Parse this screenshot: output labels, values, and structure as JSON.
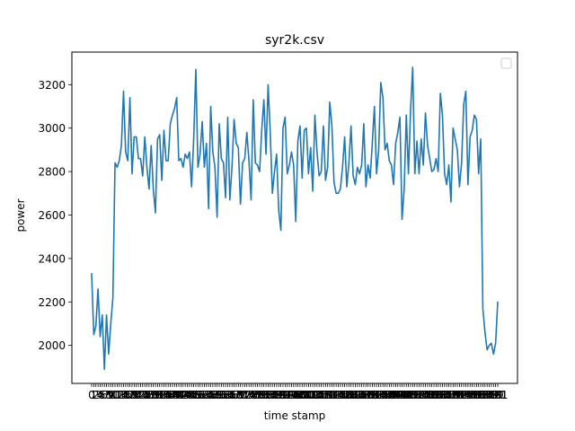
{
  "chart_data": {
    "type": "line",
    "title": "syr2k.csv",
    "xlabel": "time stamp",
    "ylabel": "power",
    "ylim": [
      1825,
      3350
    ],
    "yticks": [
      2000,
      2200,
      2400,
      2600,
      2800,
      3000,
      3200
    ],
    "grid": false,
    "legend": {
      "placement": "top-right",
      "entries": []
    },
    "line_color": "#1f77b4",
    "series": [
      {
        "values": [
          2330,
          2050,
          2090,
          2260,
          2040,
          2140,
          1890,
          2140,
          1960,
          2100,
          2220,
          2840,
          2820,
          2850,
          2920,
          3170,
          2890,
          2850,
          3140,
          2790,
          2960,
          2960,
          2860,
          2860,
          2780,
          2960,
          2820,
          2720,
          2920,
          2720,
          2610,
          2950,
          2970,
          2760,
          2990,
          2850,
          2850,
          3020,
          3060,
          3090,
          3140,
          2850,
          2860,
          2820,
          2880,
          2860,
          2890,
          2730,
          2950,
          3270,
          2820,
          2880,
          3030,
          2820,
          2930,
          2630,
          3100,
          2890,
          2820,
          2590,
          3020,
          2860,
          2840,
          2680,
          3050,
          2670,
          2820,
          3040,
          2930,
          2910,
          2650,
          2840,
          2860,
          2980,
          2850,
          2670,
          3130,
          2840,
          2830,
          2800,
          2990,
          3130,
          2880,
          3200,
          2980,
          2700,
          2800,
          2880,
          2620,
          2530,
          3000,
          3050,
          2790,
          2830,
          2890,
          2830,
          2570,
          2940,
          3010,
          2770,
          2990,
          3000,
          2790,
          2910,
          2710,
          3060,
          2890,
          2780,
          2800,
          3010,
          2760,
          2820,
          3120,
          3010,
          2750,
          2700,
          2700,
          2720,
          2820,
          2960,
          2730,
          2840,
          3010,
          2780,
          2740,
          2820,
          2790,
          2830,
          3020,
          2730,
          2830,
          2770,
          2930,
          3100,
          2790,
          2900,
          3210,
          3140,
          2900,
          2930,
          2850,
          2830,
          2740,
          2930,
          2980,
          3050,
          2580,
          2720,
          3060,
          2790,
          3080,
          3280,
          2790,
          2940,
          2790,
          2950,
          2830,
          3070,
          2920,
          2860,
          2800,
          2810,
          2860,
          2800,
          3160,
          3060,
          2790,
          2740,
          2830,
          2660,
          3000,
          2950,
          2900,
          2730,
          2840,
          3110,
          3170,
          2740,
          2960,
          2990,
          3060,
          3040,
          2790,
          2950,
          2170,
          2060,
          1980,
          2000,
          2010,
          1960,
          2010,
          2200
        ]
      }
    ]
  }
}
